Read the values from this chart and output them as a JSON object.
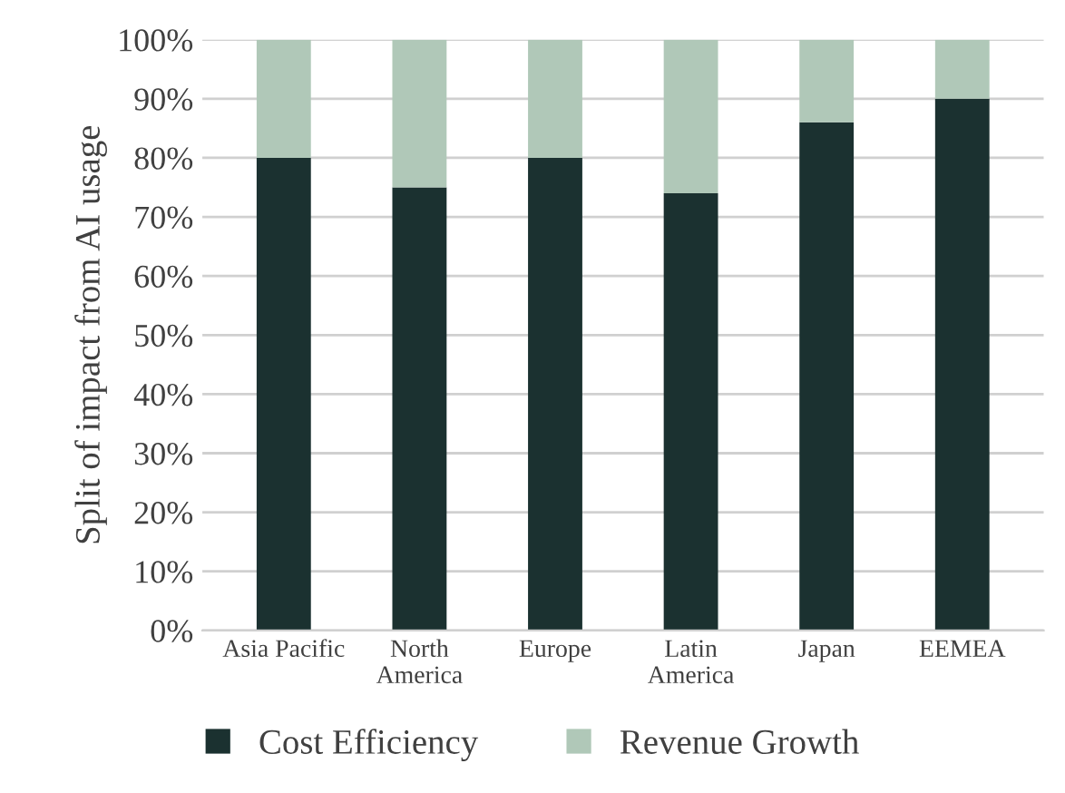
{
  "chart_data": {
    "type": "bar",
    "stacked": true,
    "ylabel": "Split of impact from AI usage",
    "categories": [
      "Asia Pacific",
      "North\nAmerica",
      "Europe",
      "Latin\nAmerica",
      "Japan",
      "EEMEA"
    ],
    "series": [
      {
        "name": "Cost Efficiency",
        "color": "#1b3130",
        "values": [
          80,
          75,
          80,
          74,
          86,
          90
        ]
      },
      {
        "name": "Revenue Growth",
        "color": "#b0c8b8",
        "values": [
          20,
          25,
          20,
          26,
          14,
          10
        ]
      }
    ],
    "ylim": [
      0,
      100
    ],
    "yticks": [
      {
        "value": 0,
        "label": "0%"
      },
      {
        "value": 10,
        "label": "10%"
      },
      {
        "value": 20,
        "label": "20%"
      },
      {
        "value": 30,
        "label": "30%"
      },
      {
        "value": 40,
        "label": "40%"
      },
      {
        "value": 50,
        "label": "50%"
      },
      {
        "value": 60,
        "label": "60%"
      },
      {
        "value": 70,
        "label": "70%"
      },
      {
        "value": 80,
        "label": "80%"
      },
      {
        "value": 90,
        "label": "90%"
      },
      {
        "value": 100,
        "label": "100%"
      }
    ],
    "grid": "y",
    "legend": "bottom"
  }
}
